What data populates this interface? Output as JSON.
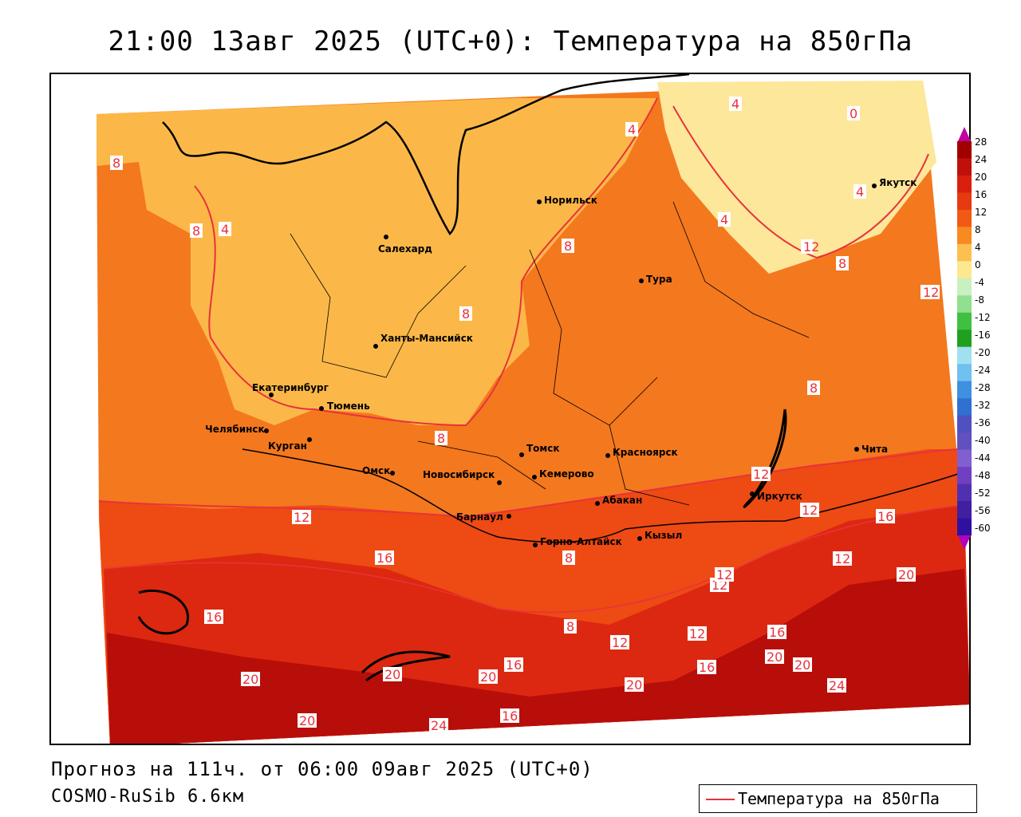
{
  "title": "21:00 13авг 2025 (UTC+0): Температура на 850гПа",
  "forecast_line": "Прогноз на 111ч. от 06:00 09авг 2025 (UTC+0)",
  "model_line": "COSMO-RuSib 6.6км",
  "legend": {
    "label": "Температура на 850гПа",
    "color": "#e8323c"
  },
  "colorbar": {
    "labels": [
      "28",
      "24",
      "20",
      "16",
      "12",
      "8",
      "4",
      "0",
      "-4",
      "-8",
      "-12",
      "-16",
      "-20",
      "-24",
      "-28",
      "-32",
      "-36",
      "-40",
      "-44",
      "-48",
      "-52",
      "-56",
      "-60"
    ],
    "colors": [
      "#a00000",
      "#c0100a",
      "#d8200c",
      "#e83a10",
      "#f05a14",
      "#f88a20",
      "#fbc050",
      "#fde890",
      "#c8f0c0",
      "#90e090",
      "#40c040",
      "#20a020",
      "#a0e0f0",
      "#70c0f0",
      "#4090e0",
      "#3070d0",
      "#5050c0",
      "#6050c0",
      "#8060d0",
      "#7040c0",
      "#5030b0",
      "#4020a0",
      "#3010a0"
    ]
  },
  "cities": [
    {
      "name": "Норильск"
    },
    {
      "name": "Салехард"
    },
    {
      "name": "Тура"
    },
    {
      "name": "Якутск"
    },
    {
      "name": "Ханты-Мансийск"
    },
    {
      "name": "Екатеринбург"
    },
    {
      "name": "Тюмень"
    },
    {
      "name": "Челябинск"
    },
    {
      "name": "Курган"
    },
    {
      "name": "Омск"
    },
    {
      "name": "Новосибирск"
    },
    {
      "name": "Томск"
    },
    {
      "name": "Кемерово"
    },
    {
      "name": "Красноярск"
    },
    {
      "name": "Абакан"
    },
    {
      "name": "Барнаул"
    },
    {
      "name": "Горно-Алтайск"
    },
    {
      "name": "Кызыл"
    },
    {
      "name": "Иркутск"
    },
    {
      "name": "Чита"
    }
  ],
  "isotherm_labels": [
    "4",
    "0",
    "4",
    "8",
    "4",
    "4",
    "4",
    "8",
    "8",
    "8",
    "12",
    "8",
    "12",
    "8",
    "8",
    "12",
    "12",
    "16",
    "12",
    "16",
    "16",
    "12",
    "20",
    "12",
    "16",
    "8",
    "12",
    "12",
    "16",
    "20",
    "20",
    "16",
    "20",
    "24",
    "20",
    "16",
    "20",
    "20",
    "24",
    "20",
    "8",
    "12"
  ]
}
